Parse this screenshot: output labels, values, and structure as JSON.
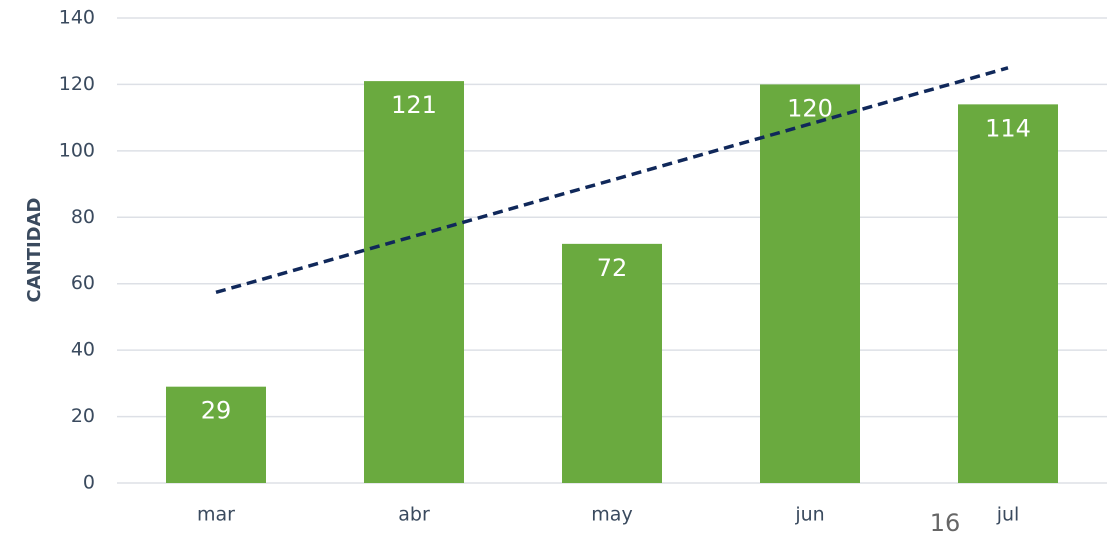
{
  "chart_data": {
    "type": "bar",
    "y_label": "CANTIDAD",
    "categories": [
      "mar",
      "abr",
      "may",
      "jun",
      "jul"
    ],
    "values": [
      29,
      121,
      72,
      120,
      114
    ],
    "color": "#6aaa3f",
    "trendline": {
      "color": "#10285a",
      "values": [
        57.4,
        74.3,
        91.2,
        108.1,
        125
      ]
    },
    "ylim": [
      0,
      140
    ],
    "yticks": [
      0,
      20,
      40,
      60,
      80,
      100,
      120,
      140
    ],
    "grid": true
  },
  "page_number": "16"
}
